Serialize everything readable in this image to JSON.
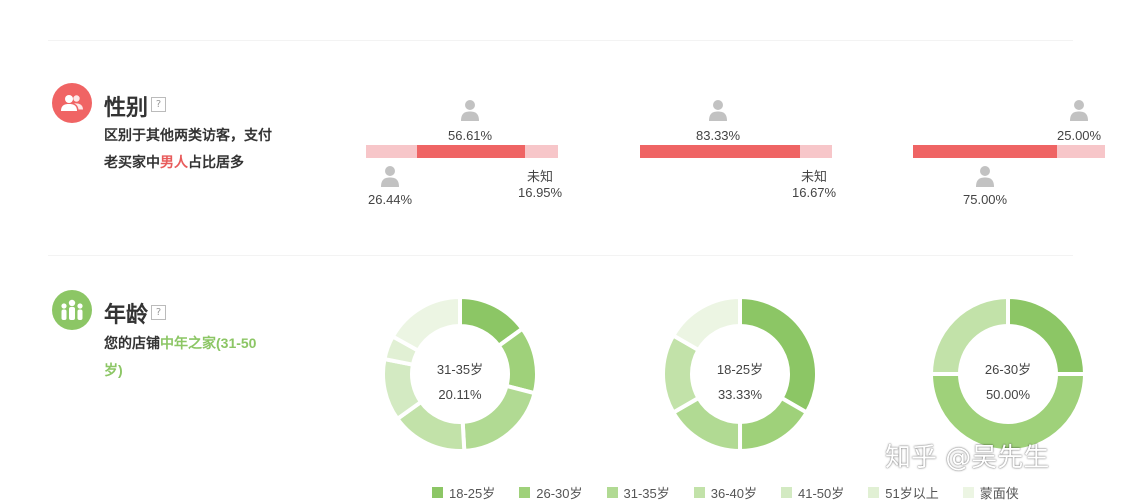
{
  "gender": {
    "title": "性别",
    "help": "?",
    "desc_prefix": "区别于其他两类访客，支付老买家中",
    "desc_highlight": "男人",
    "desc_suffix": "占比居多",
    "unknown_label": "未知",
    "columns": [
      {
        "male": 0.5661,
        "female": 0.2644,
        "unknown": 0.1695,
        "male_text": "56.61%",
        "female_text": "26.44%",
        "unknown_text": "16.95%"
      },
      {
        "male": 0.8333,
        "female": 0.0,
        "unknown": 0.1667,
        "male_text": "83.33%",
        "unknown_text": "16.67%"
      },
      {
        "male": 0.75,
        "female": 0.0,
        "unknown": 0.25,
        "male_text": "75.00%",
        "unknown_text": "25.00%"
      }
    ],
    "colors": {
      "male": "#ef6464",
      "female": "#f5a0a8",
      "unknown": "#f7c6c9",
      "person_icon": "#c2c2c2"
    }
  },
  "age": {
    "title": "年龄",
    "help": "?",
    "desc_prefix": "您的店铺",
    "desc_highlight": "中年之家(31-50岁)",
    "donuts": [
      {
        "center_label": "31-35岁",
        "center_value": "20.11%"
      },
      {
        "center_label": "18-25岁",
        "center_value": "33.33%"
      },
      {
        "center_label": "26-30岁",
        "center_value": "50.00%"
      }
    ]
  },
  "chart_data": [
    {
      "type": "pie",
      "labels": [
        "18-25岁",
        "26-30岁",
        "31-35岁",
        "36-40岁",
        "41-50岁",
        "51岁以上",
        "蒙面侠"
      ],
      "values": [
        15.0,
        14.0,
        20.11,
        16.0,
        13.0,
        5.0,
        16.89
      ],
      "colors": [
        "#8cc665",
        "#9fd17a",
        "#b1da93",
        "#c2e2a9",
        "#d3eac2",
        "#e1f0d4",
        "#ecf5e3"
      ]
    },
    {
      "type": "pie",
      "labels": [
        "18-25岁",
        "26-30岁",
        "31-35岁",
        "36-40岁",
        "41-50岁",
        "51岁以上",
        "蒙面侠"
      ],
      "values": [
        33.33,
        16.67,
        16.67,
        16.67,
        0,
        0,
        16.67
      ],
      "colors": [
        "#8cc665",
        "#9fd17a",
        "#b1da93",
        "#c2e2a9",
        "#d3eac2",
        "#e1f0d4",
        "#ecf5e3"
      ]
    },
    {
      "type": "pie",
      "labels": [
        "18-25岁",
        "26-30岁",
        "31-35岁",
        "36-40岁",
        "41-50岁",
        "51岁以上",
        "蒙面侠"
      ],
      "values": [
        25.0,
        50.0,
        25.0,
        0,
        0,
        0,
        0
      ],
      "colors": [
        "#8cc665",
        "#9fd17a",
        "#c2e2a9",
        "#c2e2a9",
        "#d3eac2",
        "#e1f0d4",
        "#ecf5e3"
      ]
    }
  ],
  "legend": {
    "items": [
      {
        "label": "18-25岁",
        "color": "#8cc665"
      },
      {
        "label": "26-30岁",
        "color": "#9fd17a"
      },
      {
        "label": "31-35岁",
        "color": "#b1da93"
      },
      {
        "label": "36-40岁",
        "color": "#c2e2a9"
      },
      {
        "label": "41-50岁",
        "color": "#d3eac2"
      },
      {
        "label": "51岁以上",
        "color": "#e1f0d4"
      },
      {
        "label": "蒙面侠",
        "color": "#ecf5e3"
      }
    ]
  },
  "watermark": "知乎 @吴先生"
}
